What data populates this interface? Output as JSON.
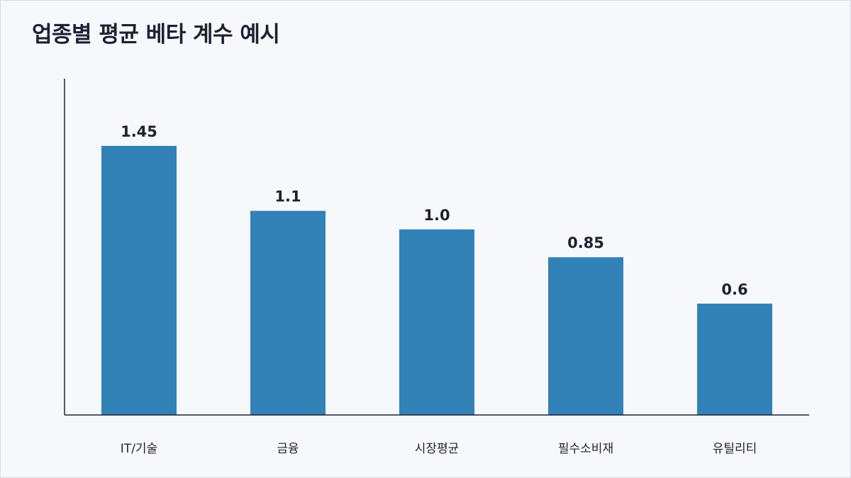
{
  "chart_data": {
    "type": "bar",
    "title": "업종별 평균 베타 계수 예시",
    "xlabel": "",
    "ylabel": "",
    "categories": [
      "IT/기술",
      "금융",
      "시장평균",
      "필수소비재",
      "유틸리티"
    ],
    "values": [
      1.45,
      1.1,
      1.0,
      0.85,
      0.6
    ],
    "value_labels": [
      "1.45",
      "1.1",
      "1.0",
      "0.85",
      "0.6"
    ],
    "ylim": [
      0,
      1.8
    ],
    "grid": false,
    "legend": "none",
    "colors": {
      "bar": "#3282b8",
      "axis": "#1c2230",
      "text": "#1c2230",
      "background": "#f7f8fc"
    }
  }
}
